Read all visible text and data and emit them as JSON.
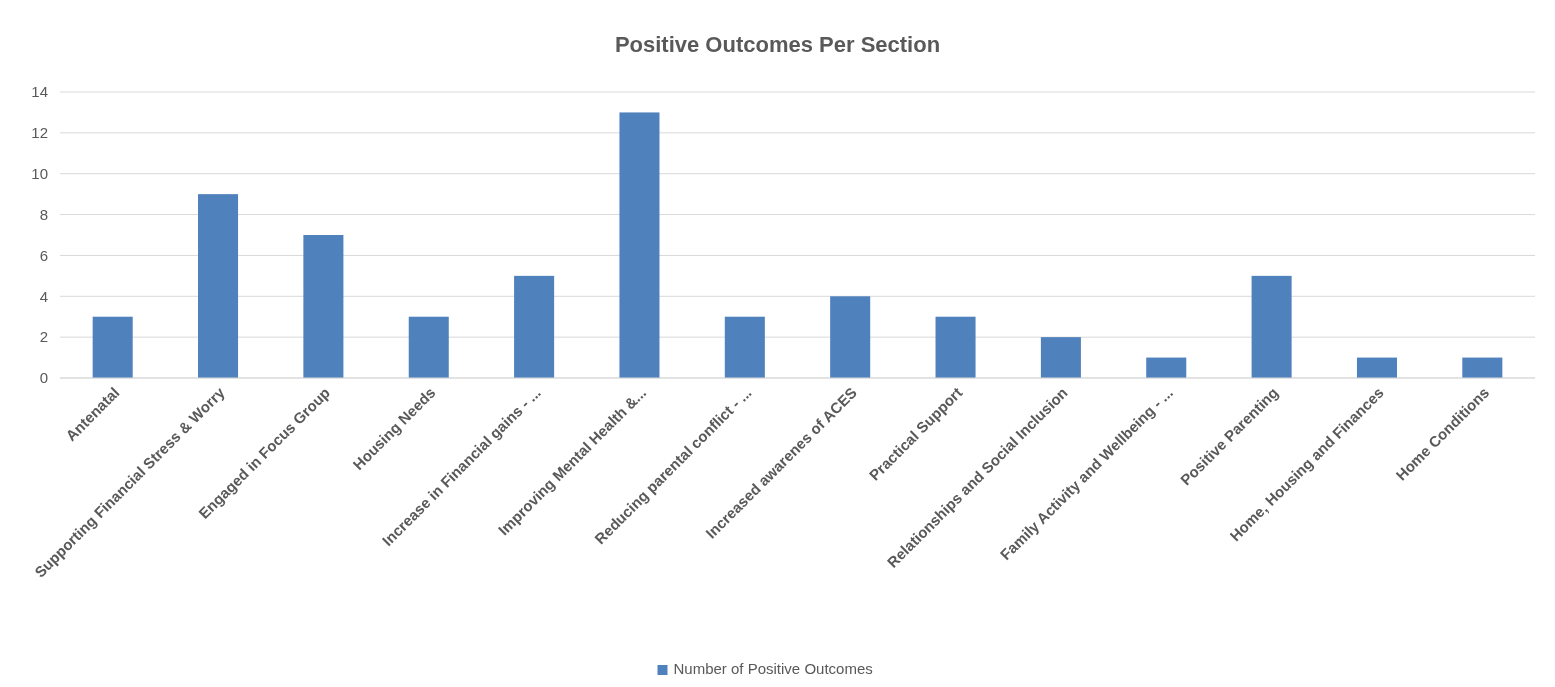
{
  "chart_data": {
    "type": "bar",
    "title": "Positive Outcomes Per Section",
    "categories": [
      "Antenatal",
      "Supporting Financial Stress & Worry",
      "Engaged in Focus Group",
      "Housing Needs",
      "Increase in Financial gains - ...",
      "Improving Mental Health &...",
      "Reducing parental conflict - ...",
      "Increased awarenes of ACES",
      "Practical Support",
      "Relationships and Social Inclusion",
      "Family Activity and Wellbeing - ...",
      "Positive Parenting",
      "Home, Housing and Finances",
      "Home Conditions"
    ],
    "series": [
      {
        "name": "Number of Positive Outcomes",
        "color": "#4f81bd",
        "values": [
          3,
          9,
          7,
          3,
          5,
          13,
          3,
          4,
          3,
          2,
          1,
          5,
          1,
          1
        ]
      }
    ],
    "ylim": [
      0,
      14
    ],
    "yticks": [
      0,
      2,
      4,
      6,
      8,
      10,
      12,
      14
    ],
    "grid": "y",
    "legend": "bottom"
  }
}
